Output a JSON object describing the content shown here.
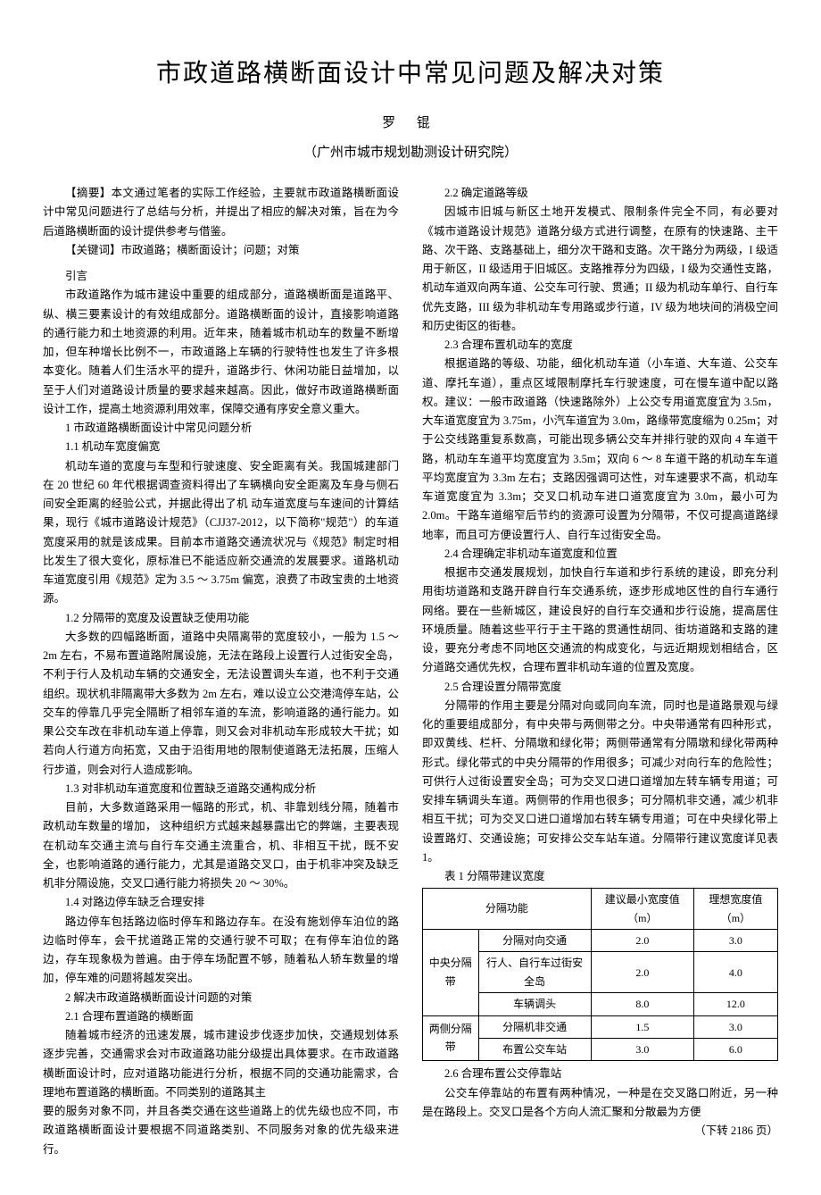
{
  "title": "市政道路横断面设计中常见问题及解决对策",
  "author": "罗 锟",
  "affiliation": "（广州市城市规划勘测设计研究院）",
  "abstract_label": "【摘要】",
  "abstract_text": "本文通过笔者的实际工作经验，主要就市政道路横断面设计中常见问题进行了总结与分析，并提出了相应的解决对策，旨在为今后道路横断面的设计提供参考与借鉴。",
  "keywords_label": "【关键词】",
  "keywords_text": "市政道路；横断面设计；问题；对策",
  "intro_heading": "引言",
  "intro_text": "市政道路作为城市建设中重要的组成部分，道路横断面是道路平、纵、横三要素设计的有效组成部分。道路横断面的设计，直接影响道路的通行能力和土地资源的利用。近年来，随着城市机动车的数量不断增加，但车种增长比例不一，市政道路上车辆的行驶特性也发生了许多根本变化。随着人们生活水平的提升，道路步行、休闲功能日益增加，以至于人们对道路设计质量的要求越来越高。因此，做好市政道路横断面设计工作，提高土地资源利用效率，保障交通有序安全意义重大。",
  "h1": "1 市政道路横断面设计中常见问题分析",
  "h1_1": "1.1 机动车宽度偏宽",
  "p1_1": "机动车道的宽度与车型和行驶速度、安全距离有关。我国城建部门在 20 世纪 60 年代根据调查资料得出了车辆横向安全距离及车身与侧石间安全距离的经验公式，并据此得出了机 动车道宽度与车速间的计算结果，现行《城市道路设计规范》（CJJ37-2012，以下简称\"规范\"）的车道宽度采用的就是该成果。目前本市道路交通流状况与《规范》制定时相比发生了很大变化，原标准已不能适应新交通流的发展要求。道路机动车道宽度引用《规范》定为 3.5 ～ 3.75m 偏宽，浪费了市政宝贵的土地资源。",
  "h1_2": "1.2 分隔带的宽度及设置缺乏使用功能",
  "p1_2": "大多数的四幅路断面，道路中央隔离带的宽度较小，一般为 1.5 ～ 2m 左右，不易布置道路附属设施，无法在路段上设置行人过街安全岛，不利于行人及机动车辆的交通安全，无法设置调头车道，也不利于交通组织。现状机非隔离带大多数为 2m 左右，难以设立公交港湾停车站，公交车的停靠几乎完全隔断了相邻车道的车流，影响道路的通行能力。如果公交车改在非机动车道上停靠，则又会对非机动车形成较大干扰；如若向人行道方向拓宽，又由于沿街用地的限制使道路无法拓展，压缩人行步道，则会对行人造成影响。",
  "h1_3": "1.3 对非机动车道宽度和位置缺乏道路交通构成分析",
  "p1_3": "目前，大多数道路采用一幅路的形式，机、非靠划线分隔，随着市政机动车数量的增加，  这种组织方式越来越暴露出它的弊端，主要表现在机动车交通主流与自行车交通主流重合，机、非相互干扰，既不安全，也影响道路的通行能力，尤其是道路交叉口，由于机非冲突及缺乏机非分隔设施，交叉口通行能力将损失 20 ～ 30%。",
  "h1_4": "1.4 对路边停车缺乏合理安排",
  "p1_4": "路边停车包括路边临时停车和路边存车。在没有施划停车泊位的路边临时停车，会干扰道路正常的交通行驶不可取；在有停车泊位的路边，存车现象极为普遍。由于停车场配置不够，随着私人轿车数量的增加，停车难的问题将越发突出。",
  "h2": "2 解决市政道路横断面设计问题的对策",
  "h2_1": "2.1 合理布置道路的横断面",
  "p2_1a": "随着城市经济的迅速发展，城市建设步伐逐步加快，交通规划体系逐步完善，交通需求会对市政道路功能分级提出具体要求。在市政道路横断面设计时，应对道路功能进行分析，根据不同的交通功能需求，合理地布置道路的横断面。不同类别的道路其主",
  "p2_1b": "要的服务对象不同，并且各类交通在这些道路上的优先级也应不同，市政道路横断面设计要根据不同道路类别、不同服务对象的优先级来进行。",
  "h2_2": "2.2 确定道路等级",
  "p2_2": "因城市旧城与新区土地开发模式、限制条件完全不同，有必要对《城市道路设计规范》道路分级方式进行调整，在原有的快速路、主干路、次干路、支路基础上，细分次干路和支路。次干路分为两级，I 级适用于新区，II 级适用于旧城区。支路推荐分为四级，I 级为交通性支路，机动车道双向两车道、公交车可行驶、贯通；II 级为机动车单行、自行车优先支路，III  级为非机动车专用路或步行道，IV 级为地块间的消极空间和历史街区的街巷。",
  "h2_3": "2.3 合理布置机动车的宽度",
  "p2_3": "根据道路的等级、功能，细化机动车道（小车道、大车道、公交车道、摩托车道），重点区域限制摩托车行驶速度，可在慢车道中配以路权。建议：一般市政道路（快速路除外）上公交专用道宽度宜为 3.5m，大车道宽度宜为 3.75m，小汽车道宜为 3.0m，路缘带宽度缩为 0.25m；对于公交线路重复系数高，可能出现多辆公交车并排行驶的双向 4 车道干路，机动车车道平均宽度宜为 3.5m；双向 6 ～ 8 车道干路的机动车车道平均宽度宜为 3.3m 左右；支路因强调可达性，对车速要求不高，机动车车道宽度宜为 3.3m；交叉口机动车进口道宽度宜为 3.0m，最小可为 2.0m。干路车道缩窄后节约的资源可设置为分隔带，不仅可提高道路绿地率，而且可方便设置行人、自行车过街安全岛。",
  "h2_4": "2.4 合理确定非机动车道宽度和位置",
  "p2_4": "根据市交通发展规划，加快自行车道和步行系统的建设，即充分利用街坊道路和支路开辟自行车交通系统，逐步形成地区性的自行车通行网络。要在一些新城区，建设良好的自行车交通和步行设施，提高居住环境质量。随着这些平行于主干路的贯通性胡同、街坊道路和支路的建设，要充分考虑不同地区交通流的构成变化，与远近期规划相结合，区分道路交通优先权，合理布置非机动车道的位置及宽度。",
  "h2_5": "2.5 合理设置分隔带宽度",
  "p2_5": "分隔带的作用主要是分隔对向或同向车流，同时也是道路景观与绿化的重要组成部分，有中央带与两侧带之分。中央带通常有四种形式，即双黄线、栏杆、分隔墩和绿化带；两侧带通常有分隔墩和绿化带两种形式。绿化带式的中央分隔带的作用很多；可减少对向行车的危险性；可供行人过街设置安全岛；可为交叉口进口道增加左转车辆专用道；可安排车辆调头车道。两侧带的作用也很多；可分隔机非交通，减少机非相互干扰；可为交叉口进口道增加右转车辆专用道；可在中央绿化带上设置路灯、交通设施；可安排公交车站车道。分隔带行建议宽度详见表 1。",
  "table1_caption": "表 1 分隔带建议宽度",
  "table1": {
    "columns": [
      "",
      "分隔功能",
      "建议最小宽度值（m）",
      "理想宽度值（m）"
    ],
    "group1_label": "中央分隔带",
    "group2_label": "两侧分隔带",
    "rows": [
      [
        "分隔对向交通",
        "2.0",
        "3.0"
      ],
      [
        "行人、自行车过街安全岛",
        "2.0",
        "4.0"
      ],
      [
        "车辆调头",
        "8.0",
        "12.0"
      ],
      [
        "分隔机非交通",
        "1.5",
        "3.0"
      ],
      [
        "布置公交车站",
        "3.0",
        "6.0"
      ]
    ]
  },
  "h2_6": "2.6 合理布置公交停靠站",
  "p2_6a": "公交车停靠站的布置有两种情况，一种是在交叉路口附近，另一种是在路段上。交叉口是各个方向人流汇聚和分散最为方便",
  "continued_label": "（下转 2186 页）",
  "style": {
    "background": "#ffffff",
    "text_color": "#000000",
    "title_fontsize": 28,
    "body_fontsize": 12.5,
    "line_height": 1.7,
    "table_border_color": "#000000"
  }
}
